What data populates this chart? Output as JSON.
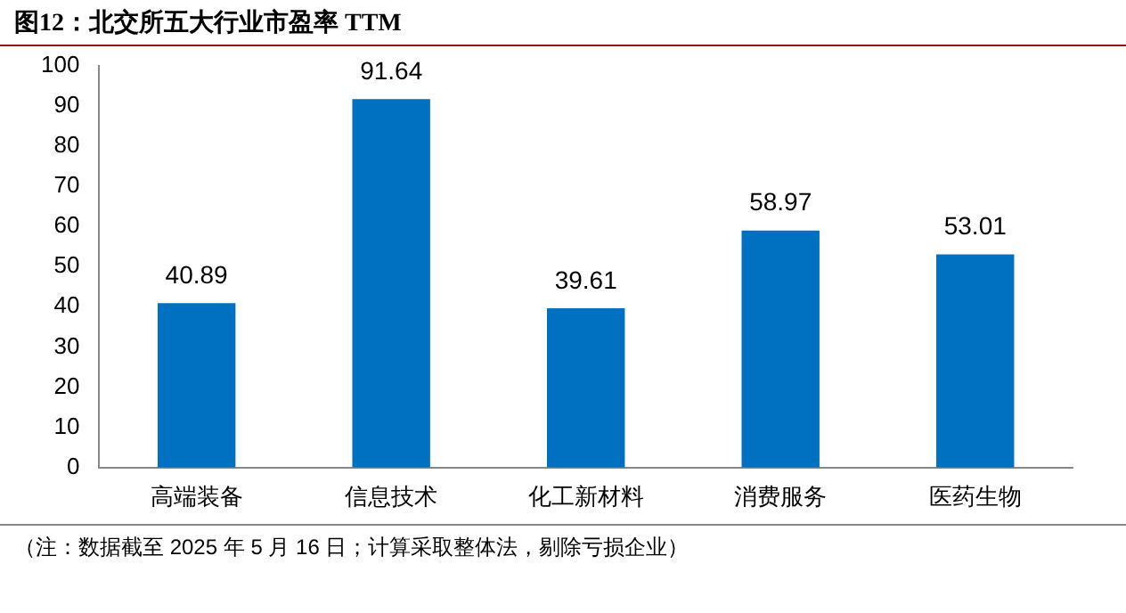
{
  "chart_data": {
    "type": "bar",
    "title": "图12：北交所五大行业市盈率 TTM",
    "categories": [
      "高端装备",
      "信息技术",
      "化工新材料",
      "消费服务",
      "医药生物"
    ],
    "values": [
      40.89,
      91.64,
      39.61,
      58.97,
      53.01
    ],
    "color": "#0070c0",
    "ylim": [
      0,
      100
    ],
    "yticks": [
      0,
      10,
      20,
      30,
      40,
      50,
      60,
      70,
      80,
      90,
      100
    ],
    "grid": false,
    "legend": false,
    "data_labels": true,
    "annotations": [
      "（注：数据截至 2025 年 5 月 16 日；计算采取整体法，剔除亏损企业）"
    ]
  }
}
